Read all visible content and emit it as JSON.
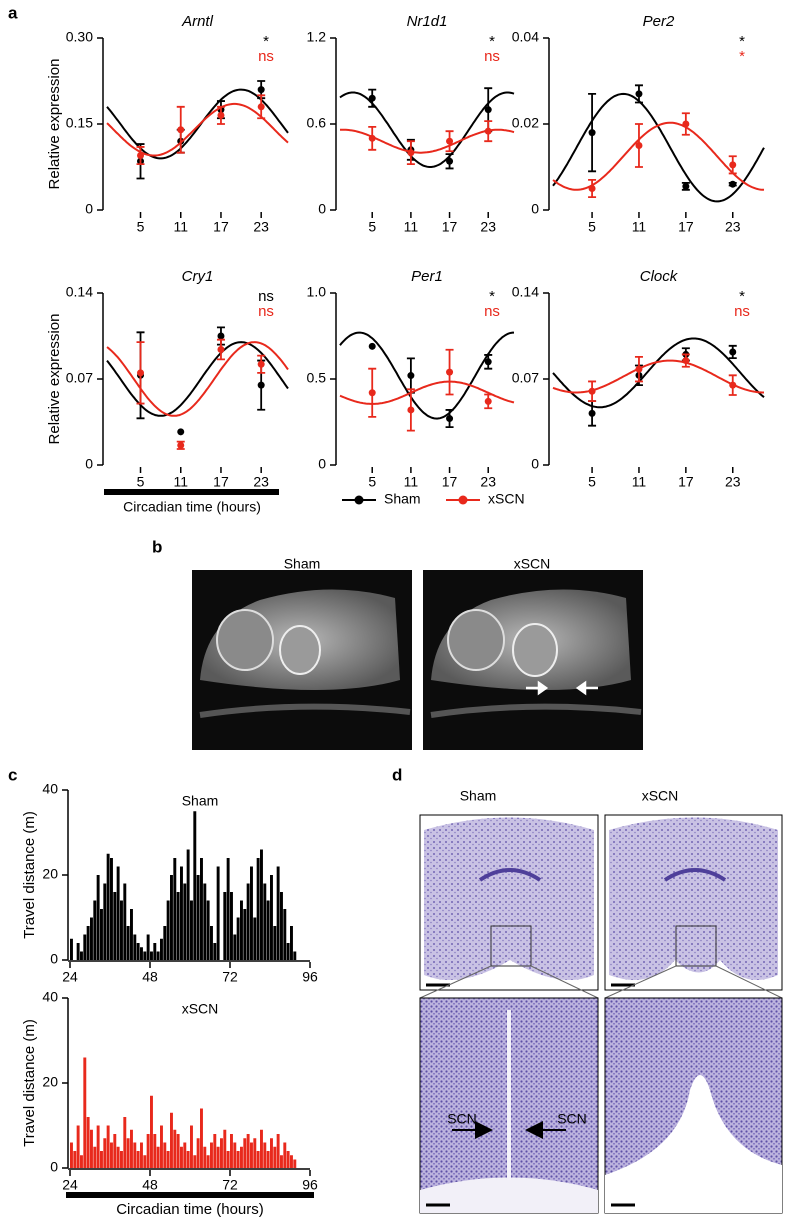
{
  "chart_data": [
    {
      "type": "line",
      "title": "Arntl",
      "ylabel": "Relative expression",
      "x": [
        5,
        11,
        17,
        23
      ],
      "xlim": [
        0,
        27
      ],
      "xticks": [
        5,
        11,
        17,
        23
      ],
      "ylim": [
        0,
        0.3
      ],
      "yticks": [
        0,
        0.15,
        {
          "value": 0.3,
          "label": "0.30"
        }
      ],
      "series": [
        {
          "name": "Sham",
          "color": "#000000",
          "values": [
            0.085,
            0.12,
            0.175,
            0.21
          ],
          "errors": [
            0.03,
            0.02,
            0.015,
            0.015
          ],
          "fit": {
            "mesor": 0.15,
            "amplitude": 0.06,
            "peak": 20,
            "period": 24
          },
          "significance": "*"
        },
        {
          "name": "xSCN",
          "color": "#e8291c",
          "values": [
            0.095,
            0.14,
            0.165,
            0.18
          ],
          "errors": [
            0.015,
            0.04,
            0.015,
            0.02
          ],
          "fit": {
            "mesor": 0.14,
            "amplitude": 0.045,
            "peak": 19,
            "period": 24
          },
          "significance": "ns"
        }
      ]
    },
    {
      "type": "line",
      "title": "Nr1d1",
      "x": [
        5,
        11,
        17,
        23
      ],
      "xlim": [
        0,
        27
      ],
      "xticks": [
        5,
        11,
        17,
        23
      ],
      "ylim": [
        0,
        1.2
      ],
      "yticks": [
        0,
        0.6,
        1.2
      ],
      "series": [
        {
          "name": "Sham",
          "color": "#000000",
          "values": [
            0.78,
            0.42,
            0.34,
            0.7
          ],
          "errors": [
            0.06,
            0.07,
            0.05,
            0.15
          ],
          "fit": {
            "mesor": 0.56,
            "amplitude": 0.26,
            "peak": 2,
            "period": 24
          },
          "significance": "*"
        },
        {
          "name": "xSCN",
          "color": "#e8291c",
          "values": [
            0.5,
            0.4,
            0.48,
            0.55
          ],
          "errors": [
            0.08,
            0.08,
            0.07,
            0.07
          ],
          "fit": {
            "mesor": 0.48,
            "amplitude": 0.08,
            "peak": 0.5,
            "period": 24
          },
          "significance": "ns"
        }
      ]
    },
    {
      "type": "line",
      "title": "Per2",
      "x": [
        5,
        11,
        17,
        23
      ],
      "xlim": [
        0,
        27
      ],
      "xticks": [
        5,
        11,
        17,
        23
      ],
      "ylim": [
        0,
        0.04
      ],
      "yticks": [
        0,
        0.02,
        0.04
      ],
      "series": [
        {
          "name": "Sham",
          "color": "#000000",
          "values": [
            0.018,
            0.027,
            0.0055,
            0.006
          ],
          "errors": [
            0.009,
            0.002,
            0.0008,
            0.0003
          ],
          "fit": {
            "mesor": 0.0145,
            "amplitude": 0.0125,
            "peak": 9,
            "period": 24
          },
          "significance": "*"
        },
        {
          "name": "xSCN",
          "color": "#e8291c",
          "values": [
            0.005,
            0.015,
            0.02,
            0.0105
          ],
          "errors": [
            0.002,
            0.005,
            0.0025,
            0.002
          ],
          "fit": {
            "mesor": 0.0125,
            "amplitude": 0.0078,
            "peak": 15,
            "period": 24
          },
          "significance": "*"
        }
      ]
    },
    {
      "type": "line",
      "title": "Cry1",
      "ylabel": "Relative expression",
      "x": [
        5,
        11,
        17,
        23
      ],
      "xlim": [
        0,
        27
      ],
      "xticks": [
        5,
        11,
        17,
        23
      ],
      "ylim": [
        0,
        0.14
      ],
      "yticks": [
        0,
        0.07,
        0.14
      ],
      "series": [
        {
          "name": "Sham",
          "color": "#000000",
          "values": [
            0.073,
            0.027,
            0.105,
            0.065
          ],
          "errors": [
            0.035,
            null,
            0.007,
            0.02
          ],
          "fit": {
            "mesor": 0.07,
            "amplitude": 0.03,
            "peak": 20,
            "period": 24
          },
          "significance": "ns"
        },
        {
          "name": "xSCN",
          "color": "#e8291c",
          "values": [
            0.075,
            0.016,
            0.094,
            0.082
          ],
          "errors": [
            0.025,
            0.003,
            0.008,
            0.007
          ],
          "fit": {
            "mesor": 0.07,
            "amplitude": 0.03,
            "peak": 22,
            "period": 24
          },
          "significance": "ns"
        }
      ]
    },
    {
      "type": "line",
      "title": "Per1",
      "x": [
        5,
        11,
        17,
        23
      ],
      "xlim": [
        0,
        27
      ],
      "xticks": [
        5,
        11,
        17,
        23
      ],
      "ylim": [
        0,
        1
      ],
      "yticks": [
        0,
        0.5,
        {
          "value": 1,
          "label": "1.0"
        }
      ],
      "series": [
        {
          "name": "Sham",
          "color": "#000000",
          "values": [
            0.69,
            0.52,
            0.27,
            0.6
          ],
          "errors": [
            null,
            0.1,
            0.05,
            0.04
          ],
          "fit": {
            "mesor": 0.52,
            "amplitude": 0.25,
            "peak": 3,
            "period": 24
          },
          "significance": "*"
        },
        {
          "name": "xSCN",
          "color": "#e8291c",
          "values": [
            0.42,
            0.32,
            0.54,
            0.37
          ],
          "errors": [
            0.14,
            0.12,
            0.13,
            0.04
          ],
          "fit": {
            "mesor": 0.42,
            "amplitude": 0.065,
            "peak": 17,
            "period": 24
          },
          "significance": "ns"
        }
      ]
    },
    {
      "type": "line",
      "title": "Clock",
      "x": [
        5,
        11,
        17,
        23
      ],
      "xlim": [
        0,
        27
      ],
      "xticks": [
        5,
        11,
        17,
        23
      ],
      "ylim": [
        0,
        0.14
      ],
      "yticks": [
        0,
        0.07,
        0.14
      ],
      "series": [
        {
          "name": "Sham",
          "color": "#000000",
          "values": [
            0.042,
            0.073,
            0.09,
            0.092
          ],
          "errors": [
            0.01,
            0.008,
            0.005,
            0.005
          ],
          "fit": {
            "mesor": 0.075,
            "amplitude": 0.028,
            "peak": 18,
            "period": 24
          },
          "significance": "*"
        },
        {
          "name": "xSCN",
          "color": "#e8291c",
          "values": [
            0.06,
            0.078,
            0.085,
            0.065
          ],
          "errors": [
            0.008,
            0.01,
            0.005,
            0.008
          ],
          "fit": {
            "mesor": 0.072,
            "amplitude": 0.013,
            "peak": 15,
            "period": 24
          },
          "significance": "ns"
        }
      ]
    },
    {
      "type": "histogram",
      "title": "Sham",
      "ylabel": "Travel distance (m)",
      "color": "#000000",
      "xlim": [
        24,
        96
      ],
      "xticks": [
        24,
        48,
        72,
        96
      ],
      "ylim": [
        0,
        40
      ],
      "yticks": [
        0,
        20,
        40
      ],
      "bins": [
        24,
        25,
        26,
        27,
        28,
        29,
        30,
        31,
        32,
        33,
        34,
        35,
        36,
        37,
        38,
        39,
        40,
        41,
        42,
        43,
        44,
        45,
        46,
        47,
        48,
        49,
        50,
        51,
        52,
        53,
        54,
        55,
        56,
        57,
        58,
        59,
        60,
        61,
        62,
        63,
        64,
        65,
        66,
        67,
        68,
        69,
        70,
        71,
        72,
        73,
        74,
        75,
        76,
        77,
        78,
        79,
        80,
        81,
        82,
        83,
        84,
        85,
        86,
        87,
        88,
        89,
        90,
        91,
        92
      ],
      "values": [
        5,
        0,
        4,
        2,
        6,
        8,
        10,
        14,
        20,
        12,
        18,
        25,
        24,
        16,
        22,
        14,
        18,
        8,
        12,
        6,
        4,
        3,
        2,
        6,
        2,
        4,
        2,
        5,
        8,
        14,
        20,
        24,
        16,
        22,
        18,
        26,
        14,
        35,
        20,
        24,
        18,
        14,
        8,
        4,
        22,
        0,
        16,
        24,
        16,
        6,
        10,
        14,
        12,
        18,
        22,
        10,
        24,
        26,
        18,
        14,
        20,
        8,
        22,
        16,
        12,
        4,
        8,
        2
      ]
    },
    {
      "type": "histogram",
      "title": "xSCN",
      "ylabel": "Travel distance (m)",
      "xlabel": "Circadian time (hours)",
      "color": "#e8291c",
      "xlim": [
        24,
        96
      ],
      "xticks": [
        24,
        48,
        72,
        96
      ],
      "ylim": [
        0,
        40
      ],
      "yticks": [
        0,
        20,
        40
      ],
      "bins": [
        24,
        25,
        26,
        27,
        28,
        29,
        30,
        31,
        32,
        33,
        34,
        35,
        36,
        37,
        38,
        39,
        40,
        41,
        42,
        43,
        44,
        45,
        46,
        47,
        48,
        49,
        50,
        51,
        52,
        53,
        54,
        55,
        56,
        57,
        58,
        59,
        60,
        61,
        62,
        63,
        64,
        65,
        66,
        67,
        68,
        69,
        70,
        71,
        72,
        73,
        74,
        75,
        76,
        77,
        78,
        79,
        80,
        81,
        82,
        83,
        84,
        85,
        86,
        87,
        88,
        89,
        90,
        91,
        92
      ],
      "values": [
        6,
        4,
        10,
        3,
        26,
        12,
        9,
        5,
        10,
        4,
        7,
        10,
        6,
        8,
        5,
        4,
        12,
        7,
        9,
        6,
        4,
        6,
        3,
        8,
        17,
        8,
        5,
        10,
        6,
        4,
        13,
        9,
        8,
        5,
        6,
        4,
        10,
        3,
        7,
        14,
        5,
        3,
        6,
        8,
        5,
        7,
        9,
        4,
        8,
        6,
        4,
        5,
        7,
        8,
        6,
        7,
        4,
        9,
        6,
        4,
        7,
        5,
        8,
        3,
        6,
        4,
        3,
        2
      ]
    }
  ],
  "figure": {
    "panel_labels": [
      "a",
      "b",
      "c",
      "d"
    ],
    "panel_a": {
      "xlabel": "Circadian time (hours)"
    },
    "panel_b": {
      "titles": [
        "Sham",
        "xSCN"
      ]
    },
    "panel_d": {
      "titles": [
        "Sham",
        "xSCN"
      ],
      "arrow_labels": [
        "SCN",
        "SCN"
      ]
    }
  }
}
